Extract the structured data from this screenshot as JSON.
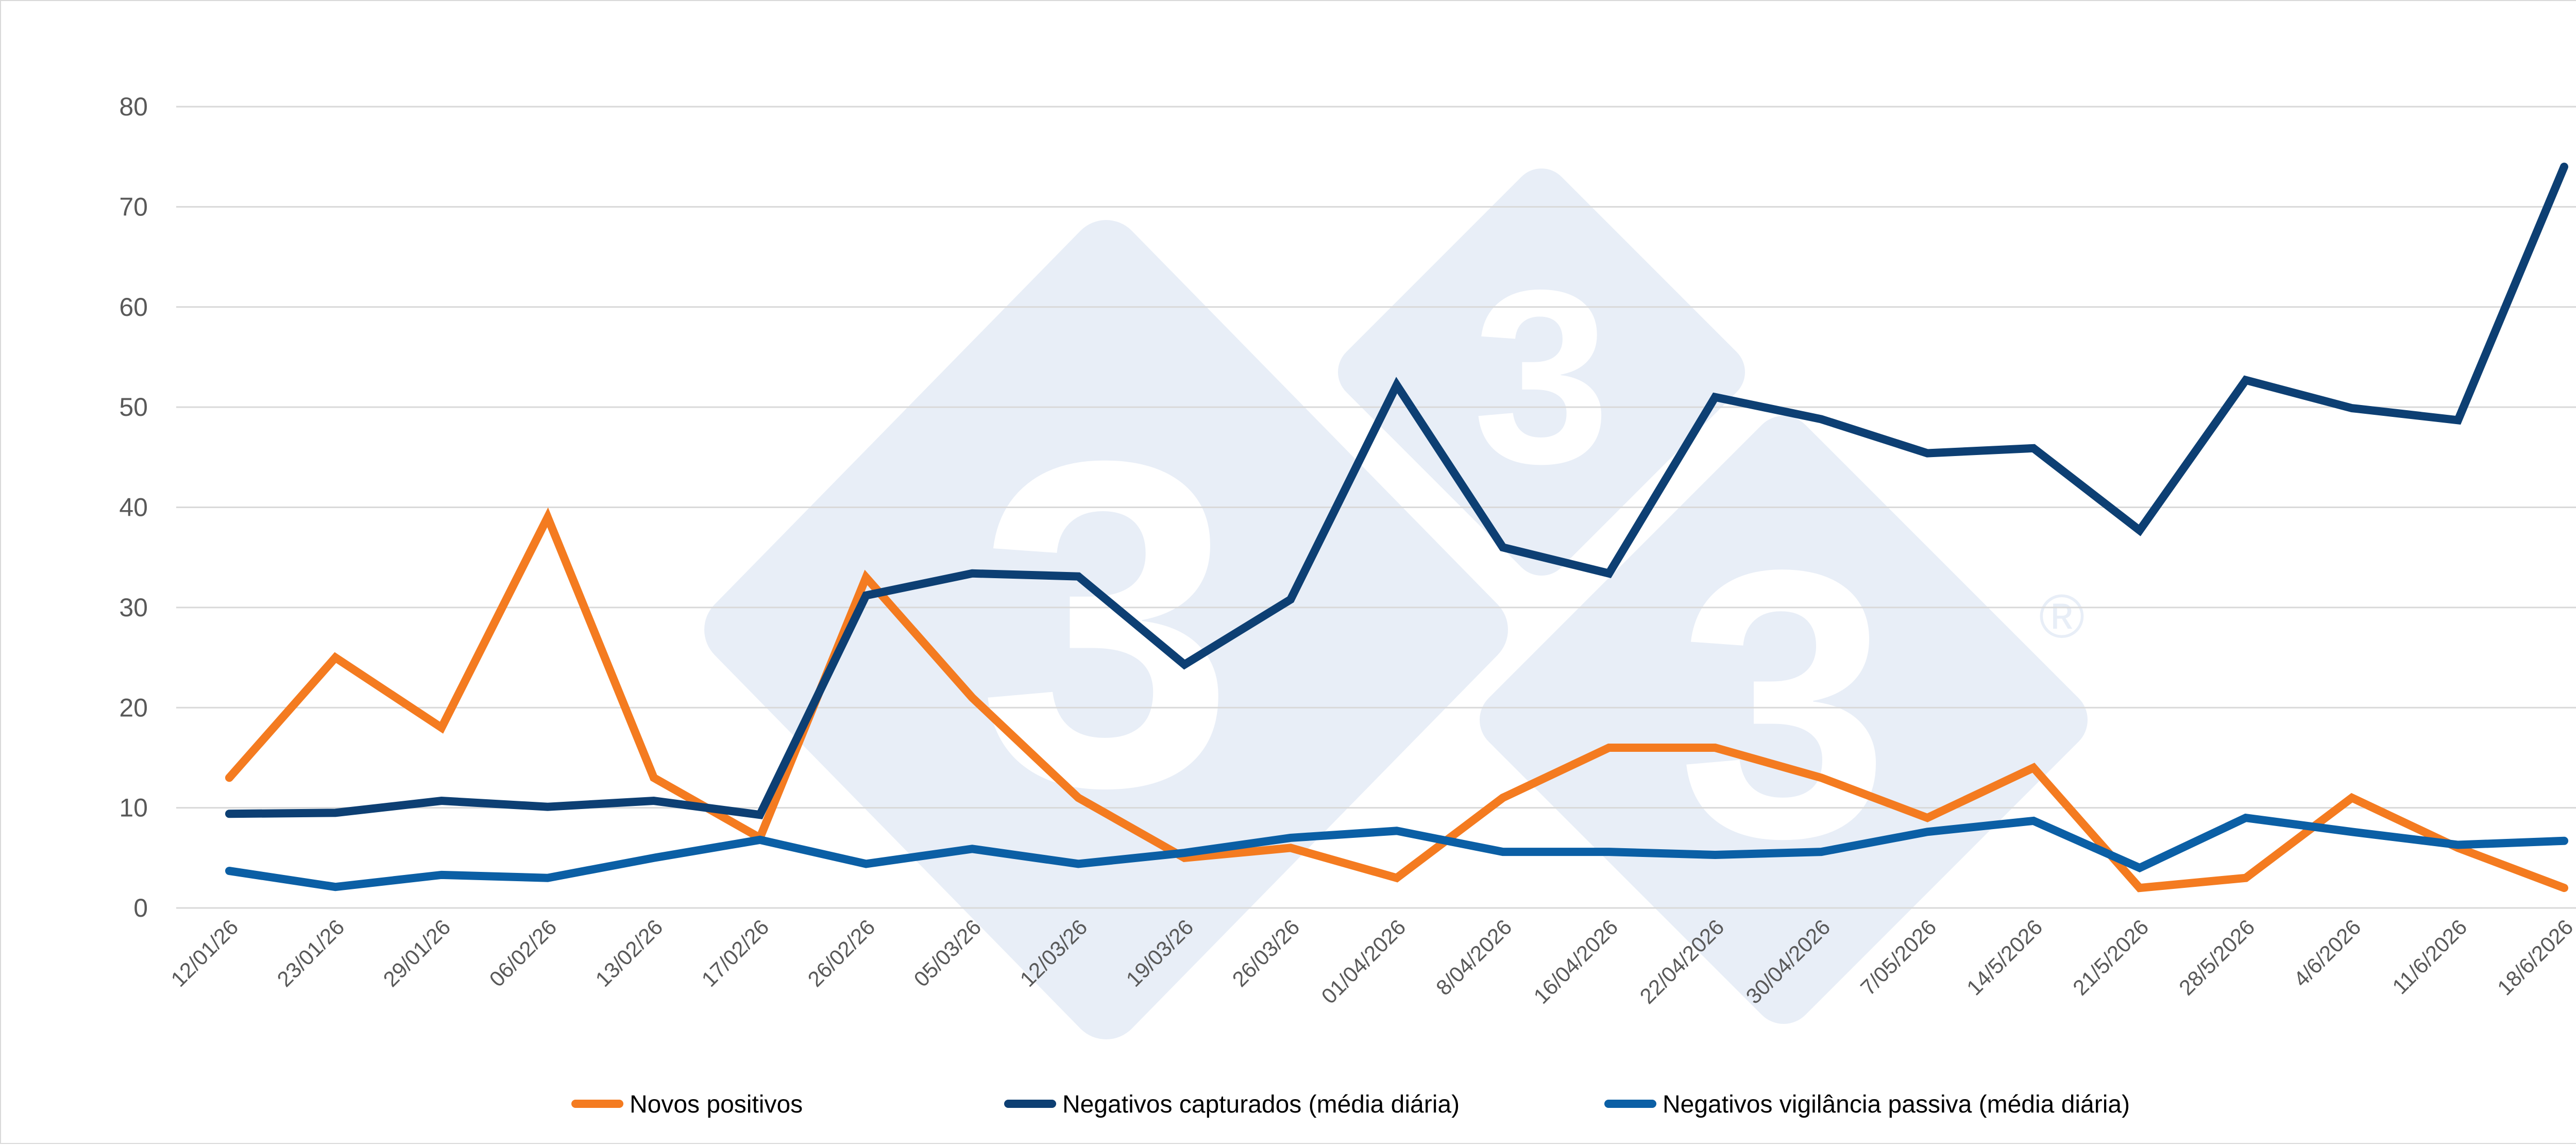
{
  "chart_data": {
    "type": "line",
    "title": "",
    "xlabel": "",
    "ylabel": "",
    "ylim": [
      0,
      80
    ],
    "yticks": [
      0,
      10,
      20,
      30,
      40,
      50,
      60,
      70,
      80
    ],
    "grid": true,
    "legend_position": "bottom",
    "categories": [
      "12/01/26",
      "23/01/26",
      "29/01/26",
      "06/02/26",
      "13/02/26",
      "17/02/26",
      "26/02/26",
      "05/03/26",
      "12/03/26",
      "19/03/26",
      "26/03/26",
      "01/04/2026",
      "8/04/2026",
      "16/04/2026",
      "22/04/2026",
      "30/04/2026",
      "7/05/2026",
      "14/5/2026",
      "21/5/2026",
      "28/5/2026",
      "4/6/2026",
      "11/6/2026",
      "18/6/2026"
    ],
    "series": [
      {
        "name": "Novos positivos",
        "color": "#F47B20",
        "values": [
          13,
          25,
          18,
          39,
          13,
          7,
          33,
          21,
          11,
          5,
          6,
          3,
          11,
          16,
          16,
          13,
          9,
          14,
          2,
          3,
          11,
          6,
          2
        ]
      },
      {
        "name": "Negativos capturados (média diária)",
        "color": "#0D3F73",
        "values": [
          9.4,
          9.5,
          10.7,
          10.1,
          10.7,
          9.3,
          31.2,
          33.4,
          33.1,
          24.3,
          30.8,
          52.2,
          36,
          33.4,
          51,
          48.8,
          45.4,
          45.9,
          37.7,
          52.7,
          49.9,
          48.7,
          74
        ]
      },
      {
        "name": "Negativos vigilância passiva (média diária)",
        "color": "#0B5FA5",
        "values": [
          3.7,
          2.1,
          3.3,
          3,
          5,
          6.8,
          4.4,
          5.9,
          4.4,
          5.5,
          7,
          7.7,
          5.6,
          5.6,
          5.3,
          5.6,
          7.6,
          8.7,
          4,
          9,
          7.6,
          6.3,
          6.7
        ]
      }
    ]
  },
  "watermark": {
    "logo_text": "3",
    "registered_mark": "®",
    "color": "#E8EEF7"
  }
}
